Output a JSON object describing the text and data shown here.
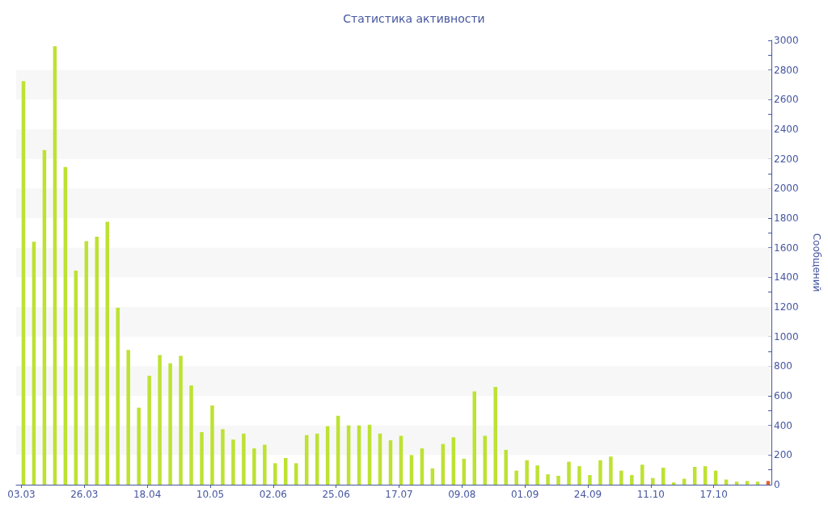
{
  "chart_data": {
    "type": "bar",
    "title": "Статистика активности",
    "ylabel": "Сообщений",
    "categories": [
      "03.03",
      null,
      null,
      null,
      null,
      null,
      "26.03",
      null,
      null,
      null,
      null,
      null,
      "18.04",
      null,
      null,
      null,
      null,
      null,
      "10.05",
      null,
      null,
      null,
      null,
      null,
      "02.06",
      null,
      null,
      null,
      null,
      null,
      "25.06",
      null,
      null,
      null,
      null,
      null,
      "17.07",
      null,
      null,
      null,
      null,
      null,
      "09.08",
      null,
      null,
      null,
      null,
      null,
      "01.09",
      null,
      null,
      null,
      null,
      null,
      "24.09",
      null,
      null,
      null,
      null,
      null,
      "11.10",
      null,
      null,
      null,
      null,
      null,
      "17.10",
      null,
      null,
      null,
      null,
      null
    ],
    "values": [
      2725,
      1640,
      2260,
      2960,
      2145,
      1445,
      1645,
      1675,
      1775,
      1195,
      910,
      520,
      735,
      875,
      820,
      870,
      670,
      355,
      535,
      375,
      305,
      345,
      245,
      270,
      145,
      180,
      145,
      335,
      345,
      395,
      465,
      400,
      400,
      405,
      345,
      300,
      330,
      200,
      245,
      110,
      275,
      320,
      175,
      630,
      330,
      660,
      235,
      95,
      165,
      130,
      70,
      60,
      155,
      125,
      65,
      165,
      190,
      95,
      65,
      135,
      45,
      115,
      15,
      40,
      120,
      125,
      95,
      35,
      20,
      25,
      20,
      25
    ],
    "colors": [
      "#bde233",
      "#bde233",
      "#bde233",
      "#bde233",
      "#bde233",
      "#bde233",
      "#bde233",
      "#bde233",
      "#bde233",
      "#bde233",
      "#bde233",
      "#bde233",
      "#bde233",
      "#bde233",
      "#bde233",
      "#bde233",
      "#bde233",
      "#bde233",
      "#bde233",
      "#bde233",
      "#bde233",
      "#bde233",
      "#bde233",
      "#bde233",
      "#bde233",
      "#bde233",
      "#bde233",
      "#bde233",
      "#bde233",
      "#bde233",
      "#bde233",
      "#bde233",
      "#bde233",
      "#bde233",
      "#bde233",
      "#bde233",
      "#bde233",
      "#bde233",
      "#bde233",
      "#bde233",
      "#bde233",
      "#bde233",
      "#bde233",
      "#bde233",
      "#bde233",
      "#bde233",
      "#bde233",
      "#bde233",
      "#bde233",
      "#bde233",
      "#bde233",
      "#bde233",
      "#bde233",
      "#bde233",
      "#bde233",
      "#bde233",
      "#bde233",
      "#bde233",
      "#bde233",
      "#bde233",
      "#bde233",
      "#bde233",
      "#bde233",
      "#bde233",
      "#bde233",
      "#bde233",
      "#bde233",
      "#bde233",
      "#bde233",
      "#bde233",
      "#bde233",
      "#e4602e"
    ],
    "ylim": [
      0,
      3000
    ],
    "yticks": [
      0,
      {
        "value": 100,
        "label": null
      },
      200,
      {
        "value": 300,
        "label": null
      },
      400,
      {
        "value": 500,
        "label": null
      },
      600,
      {
        "value": 700,
        "label": null
      },
      800,
      {
        "value": 900,
        "label": null
      },
      1000,
      {
        "value": 1100,
        "label": null
      },
      1200,
      {
        "value": 1300,
        "label": null
      },
      1400,
      {
        "value": 1500,
        "label": null
      },
      1600,
      {
        "value": 1700,
        "label": null
      },
      1800,
      {
        "value": 1900,
        "label": null
      },
      2000,
      {
        "value": 2100,
        "label": null
      },
      2200,
      {
        "value": 2300,
        "label": null
      },
      2400,
      {
        "value": 2500,
        "label": null
      },
      2600,
      {
        "value": 2700,
        "label": null
      },
      2800,
      {
        "value": 2900,
        "label": null
      },
      3000
    ],
    "bands": [
      {
        "axis": "y",
        "from": 200,
        "to": 400,
        "color": "#f7f7f7"
      },
      {
        "axis": "y",
        "from": 600,
        "to": 800,
        "color": "#f7f7f7"
      },
      {
        "axis": "y",
        "from": 1000,
        "to": 1200,
        "color": "#f7f7f7"
      },
      {
        "axis": "y",
        "from": 1400,
        "to": 1600,
        "color": "#f7f7f7"
      },
      {
        "axis": "y",
        "from": 1800,
        "to": 2000,
        "color": "#f7f7f7"
      },
      {
        "axis": "y",
        "from": 2200,
        "to": 2400,
        "color": "#f7f7f7"
      },
      {
        "axis": "y",
        "from": 2600,
        "to": 2800,
        "color": "#f7f7f7"
      }
    ]
  }
}
